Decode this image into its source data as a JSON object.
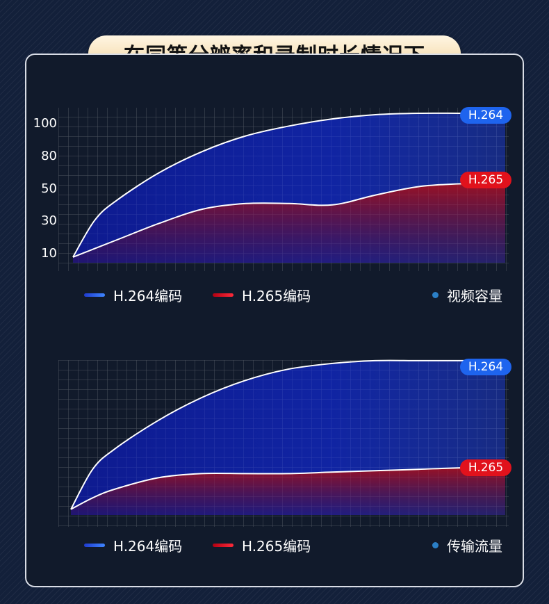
{
  "title": "在同等分辨率和录制时长情况下",
  "colors": {
    "h264": "#2f5cff",
    "h265": "#e0101c",
    "accent": "#f2d49e"
  },
  "chart_data": [
    {
      "type": "area",
      "title": "",
      "metric_label": "视频容量",
      "y_ticks": [
        "100",
        "80",
        "50",
        "30",
        "10"
      ],
      "x": [
        0,
        5,
        10,
        20,
        30,
        40,
        50,
        60,
        70,
        80,
        90,
        100
      ],
      "series": [
        {
          "name": "H.264编码",
          "tag": "H.264",
          "values": [
            4,
            30,
            44,
            64,
            79,
            90,
            97,
            102,
            105,
            106,
            106,
            106
          ]
        },
        {
          "name": "H.265编码",
          "tag": "H.265",
          "values": [
            4,
            10,
            16,
            28,
            38,
            42,
            42,
            41,
            48,
            54,
            56,
            56
          ]
        }
      ]
    },
    {
      "type": "area",
      "title": "",
      "metric_label": "传输流量",
      "y_ticks": [],
      "x": [
        0,
        5,
        10,
        20,
        30,
        40,
        50,
        60,
        70,
        80,
        90,
        100
      ],
      "series": [
        {
          "name": "H.264编码",
          "tag": "H.264",
          "values": [
            4,
            32,
            46,
            66,
            82,
            94,
            102,
            106,
            108,
            108,
            108,
            108
          ]
        },
        {
          "name": "H.265编码",
          "tag": "H.265",
          "values": [
            4,
            12,
            18,
            26,
            29,
            29,
            29,
            30,
            31,
            32,
            33,
            33
          ]
        }
      ]
    }
  ]
}
